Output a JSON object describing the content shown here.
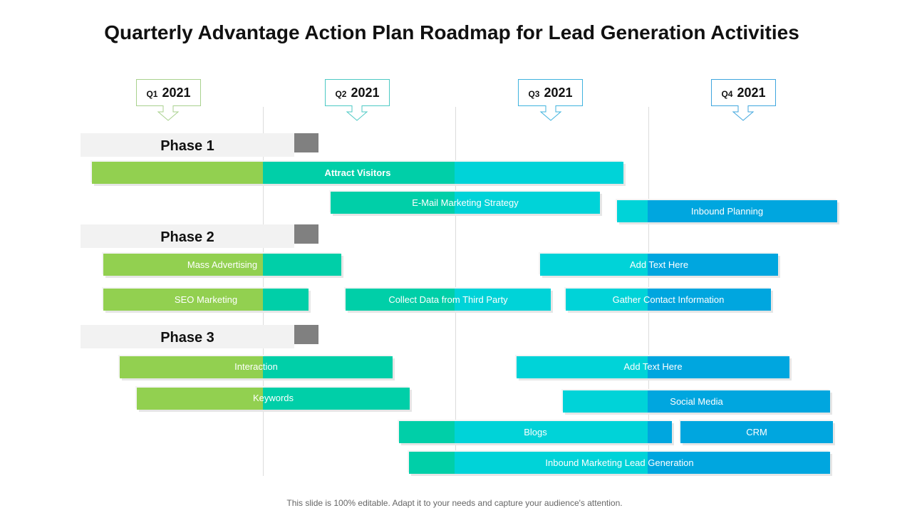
{
  "title": "Quarterly Advantage Action Plan Roadmap for Lead Generation Activities",
  "colors": {
    "q1": "#92d050",
    "q2": "#00cfa8",
    "q3": "#00d3d8",
    "q4": "#00a6df"
  },
  "quarters": [
    {
      "q": "Q1",
      "year": "2021"
    },
    {
      "q": "Q2",
      "year": "2021"
    },
    {
      "q": "Q3",
      "year": "2021"
    },
    {
      "q": "Q4",
      "year": "2021"
    }
  ],
  "phases": [
    "Phase 1",
    "Phase 2",
    "Phase 3"
  ],
  "tasks": [
    "Attract Visitors",
    "E-Mail Marketing Strategy",
    "Inbound Planning",
    "Mass Advertising",
    "Add Text Here",
    "SEO Marketing",
    "Collect Data from Third Party",
    "Gather Contact Information",
    "Interaction",
    "Add Text Here",
    "Keywords",
    "Social Media",
    "Blogs",
    "CRM",
    "Inbound Marketing Lead Generation"
  ],
  "footer": "This slide is 100% editable. Adapt it to your needs and capture your audience's attention."
}
